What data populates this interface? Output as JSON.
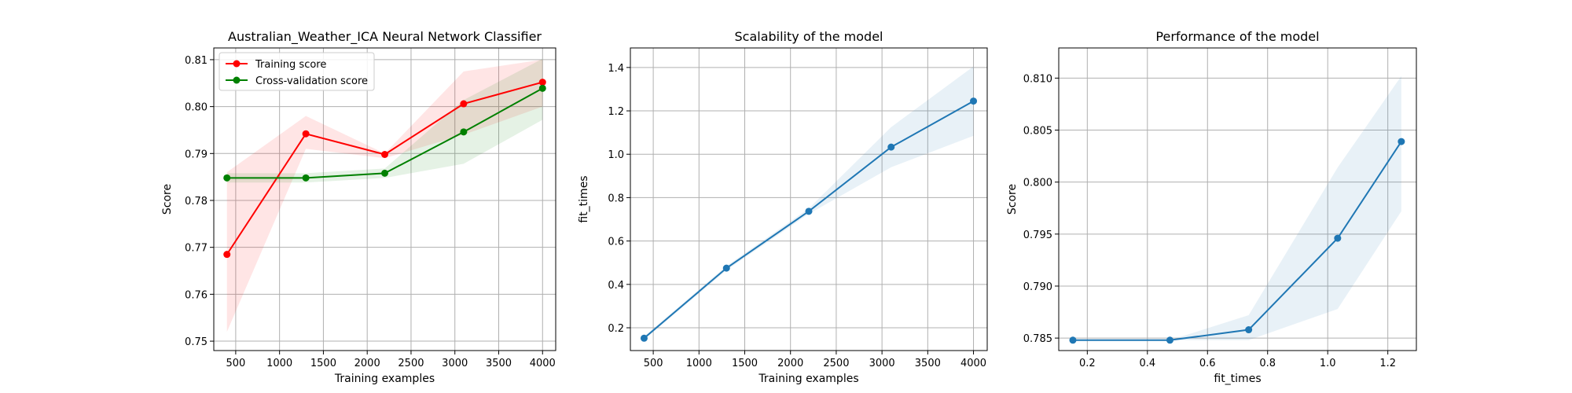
{
  "chart_data": [
    {
      "type": "line",
      "title": "Australian_Weather_ICA Neural Network Classifier",
      "xlabel": "Training examples",
      "ylabel": "Score",
      "xlim": [
        250,
        4150
      ],
      "ylim": [
        0.748,
        0.8125
      ],
      "xticks": [
        500,
        1000,
        1500,
        2000,
        2500,
        3000,
        3500,
        4000
      ],
      "yticks": [
        0.75,
        0.76,
        0.77,
        0.78,
        0.79,
        0.8,
        0.81
      ],
      "grid": true,
      "legend": "top-left",
      "x": [
        400,
        1300,
        2200,
        3100,
        4000
      ],
      "series": [
        {
          "name": "Training score",
          "color": "#ff0000",
          "band_color": "#ff0000",
          "values": [
            0.7685,
            0.7942,
            0.7898,
            0.8006,
            0.8052
          ],
          "band_low": [
            0.752,
            0.791,
            0.789,
            0.794,
            0.8
          ],
          "band_high": [
            0.786,
            0.798,
            0.79,
            0.8075,
            0.81
          ]
        },
        {
          "name": "Cross-validation score",
          "color": "#008000",
          "band_color": "#008000",
          "values": [
            0.7848,
            0.7848,
            0.7858,
            0.7946,
            0.8039
          ],
          "band_low": [
            0.7838,
            0.7838,
            0.7848,
            0.7878,
            0.7972
          ],
          "band_high": [
            0.7858,
            0.7858,
            0.7868,
            0.8014,
            0.8102
          ]
        }
      ]
    },
    {
      "type": "line",
      "title": "Scalability of the model",
      "xlabel": "Training examples",
      "ylabel": "fit_times",
      "xlim": [
        250,
        4150
      ],
      "ylim": [
        0.095,
        1.49
      ],
      "xticks": [
        500,
        1000,
        1500,
        2000,
        2500,
        3000,
        3500,
        4000
      ],
      "yticks": [
        0.2,
        0.4,
        0.6,
        0.8,
        1.0,
        1.2,
        1.4
      ],
      "grid": true,
      "x": [
        400,
        1300,
        2200,
        3100,
        4000
      ],
      "series": [
        {
          "color": "#1f77b4",
          "band_color": "#1f77b4",
          "values": [
            0.152,
            0.475,
            0.737,
            1.033,
            1.245
          ],
          "band_low": [
            0.145,
            0.465,
            0.725,
            0.94,
            1.085
          ],
          "band_high": [
            0.16,
            0.485,
            0.75,
            1.125,
            1.405
          ]
        }
      ]
    },
    {
      "type": "line",
      "title": "Performance of the model",
      "xlabel": "fit_times",
      "ylabel": "Score",
      "xlim": [
        0.105,
        1.295
      ],
      "ylim": [
        0.7838,
        0.8129
      ],
      "xticks": [
        0.2,
        0.4,
        0.6,
        0.8,
        1.0,
        1.2
      ],
      "yticks": [
        0.785,
        0.79,
        0.795,
        0.8,
        0.805,
        0.81
      ],
      "ytick_decimals": 3,
      "grid": true,
      "x": [
        0.152,
        0.475,
        0.737,
        1.033,
        1.245
      ],
      "series": [
        {
          "color": "#1f77b4",
          "band_color": "#1f77b4",
          "values": [
            0.7848,
            0.7848,
            0.7858,
            0.7946,
            0.8039
          ],
          "band_low": [
            0.7848,
            0.7848,
            0.7848,
            0.7878,
            0.7972
          ],
          "band_high": [
            0.7848,
            0.7848,
            0.7872,
            0.8014,
            0.8102
          ]
        }
      ]
    }
  ]
}
